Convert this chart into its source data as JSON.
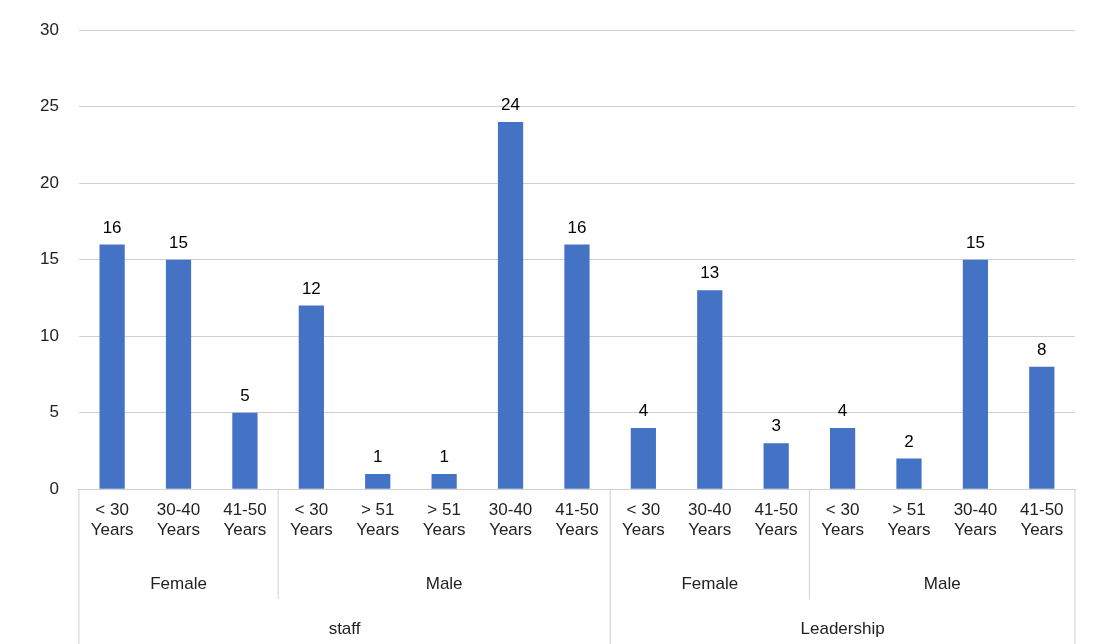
{
  "chart_data": {
    "type": "bar",
    "categories": [
      "< 30 Years",
      "30-40 Years",
      "41-50 Years",
      "< 30 Years",
      "> 51 Years",
      "> 51 Years",
      "30-40 Years",
      "41-50 Years",
      "< 30 Years",
      "30-40 Years",
      "41-50 Years",
      "< 30 Years",
      "> 51 Years",
      "30-40 Years",
      "41-50 Years"
    ],
    "values": [
      16,
      15,
      5,
      12,
      1,
      1,
      24,
      16,
      4,
      13,
      3,
      4,
      2,
      15,
      8
    ],
    "color": "#4472c4",
    "ylim": [
      0,
      30
    ],
    "yticks": [
      0,
      5,
      10,
      15,
      20,
      25,
      30
    ],
    "grid": "y",
    "legend": false,
    "data_labels": true,
    "annotations": [
      "Female",
      "Male",
      "Female",
      "Male",
      "staff",
      "Leadership"
    ]
  }
}
